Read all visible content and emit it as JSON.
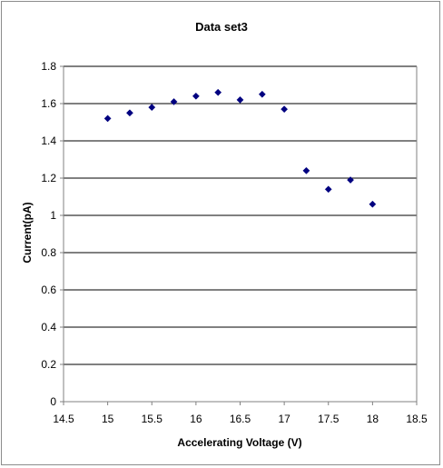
{
  "chart_data": {
    "type": "scatter",
    "title": "Data set3",
    "xlabel": "Accelerating Voltage (V)",
    "ylabel": "Current(pA)",
    "xlim": [
      14.5,
      18.5
    ],
    "ylim": [
      0,
      1.8
    ],
    "xticks": [
      "14.5",
      "15",
      "15.5",
      "16",
      "16.5",
      "17",
      "17.5",
      "18",
      "18.5"
    ],
    "yticks": [
      "0",
      "0.2",
      "0.4",
      "0.6",
      "0.8",
      "1",
      "1.2",
      "1.4",
      "1.6",
      "1.8"
    ],
    "grid": "horizontal",
    "legend": "none",
    "marker": "diamond",
    "series": [
      {
        "color": "#000080",
        "x": [
          15,
          15.25,
          15.5,
          15.75,
          16,
          16.25,
          16.5,
          16.75,
          17,
          17.25,
          17.5,
          17.75,
          18
        ],
        "y": [
          1.52,
          1.55,
          1.58,
          1.61,
          1.64,
          1.66,
          1.62,
          1.65,
          1.57,
          1.24,
          1.14,
          1.19,
          1.06
        ]
      }
    ]
  }
}
